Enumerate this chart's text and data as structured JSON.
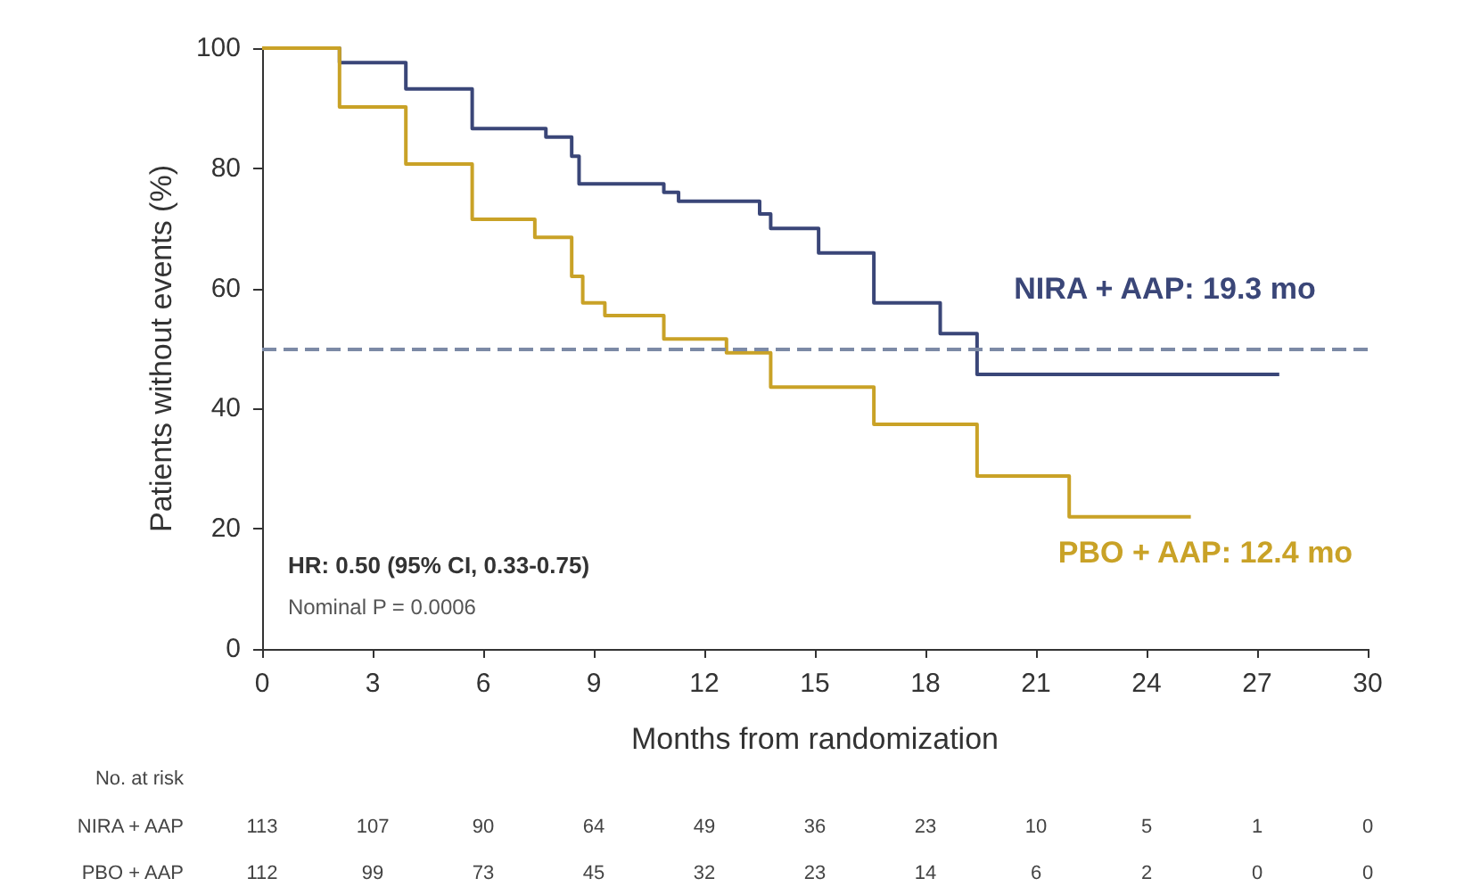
{
  "chart_data": {
    "type": "step",
    "xlabel": "Months from randomization",
    "ylabel": "Patients without events (%)",
    "xlim": [
      0,
      30
    ],
    "xticks": [
      0,
      3,
      6,
      9,
      12,
      15,
      18,
      21,
      24,
      27,
      30
    ],
    "ylim": [
      0,
      100
    ],
    "yticks": [
      0,
      20,
      40,
      60,
      80,
      100
    ],
    "grid": false,
    "legend": false,
    "marker": "none",
    "line_style": "solid",
    "series": [
      {
        "name": "NIRA + AAP: 19.3 mo",
        "color": "#3a4678",
        "x": [
          0,
          2.1,
          3.9,
          5.7,
          7.7,
          8.4,
          8.6,
          10.9,
          11.3,
          13.5,
          13.8,
          15.1,
          16.6,
          18.4,
          19.4,
          27.6
        ],
        "values": [
          100,
          97.6,
          93.2,
          86.6,
          85.2,
          82,
          77.4,
          76,
          74.5,
          72.4,
          70,
          65.9,
          57.6,
          52.5,
          45.7,
          45.7
        ]
      },
      {
        "name": "PBO + AAP: 12.4 mo",
        "color": "#c9a227",
        "x": [
          0,
          2.1,
          3.9,
          5.7,
          7.4,
          8.4,
          8.7,
          9.3,
          10.9,
          12.6,
          13.8,
          16.6,
          19.4,
          21.9,
          25.2
        ],
        "values": [
          100,
          90.2,
          80.7,
          71.5,
          68.5,
          62,
          57.6,
          55.5,
          51.6,
          49.3,
          43.6,
          37.4,
          28.8,
          22,
          22
        ]
      }
    ],
    "ref_lines": [
      {
        "axis": "y",
        "value": 50,
        "color": "#7c8aa6",
        "line_style": "dashed"
      }
    ],
    "annotations": [
      "HR: 0.50 (95% CI, 0.33-0.75)",
      "Nominal P = 0.0006",
      "No. at risk",
      "NIRA + AAP",
      "113",
      "107",
      "90",
      "64",
      "49",
      "36",
      "23",
      "10",
      "5",
      "1",
      "0",
      "PBO + AAP",
      "112",
      "99",
      "73",
      "45",
      "32",
      "23",
      "14",
      "6",
      "2",
      "0",
      "0"
    ]
  }
}
